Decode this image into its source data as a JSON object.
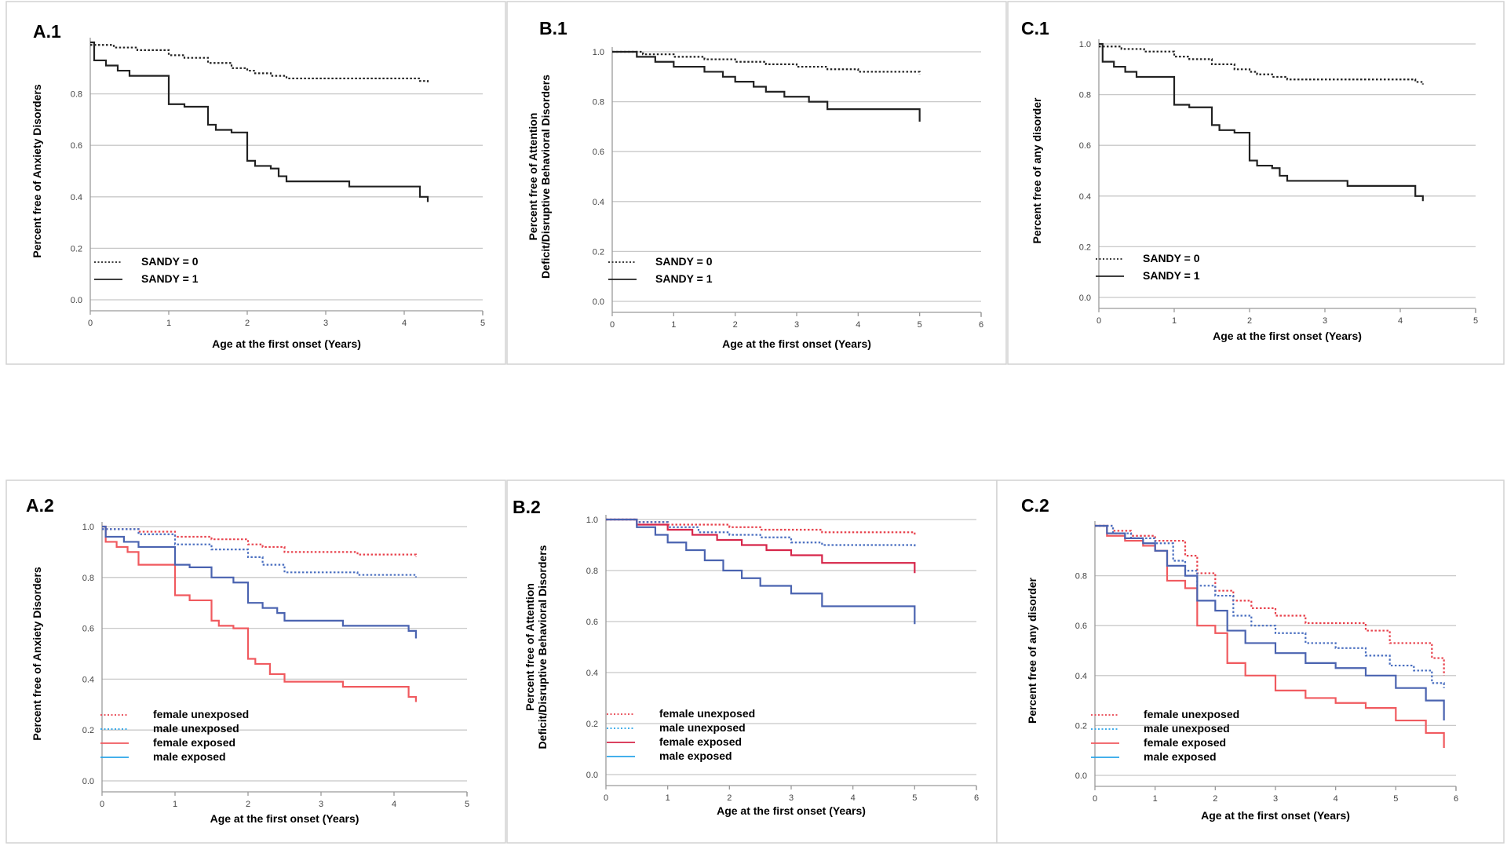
{
  "chart_data": [
    {
      "id": "A.1",
      "type": "line",
      "title": "A.1",
      "xlabel": "Age at the first onset (Years)",
      "ylabel": [
        "Percent free of Anxiety Disorders"
      ],
      "xlim": [
        0,
        5
      ],
      "ylim": [
        0,
        1
      ],
      "xticks": [
        "0",
        "1",
        "2",
        "3",
        "4",
        "5"
      ],
      "yticks": [
        "0.0",
        "0.2",
        "0.4",
        "0.6",
        "0.8"
      ],
      "series": [
        {
          "name": "SANDY = 0",
          "color": "#222222",
          "dash": "dotted",
          "x": [
            0,
            0.3,
            0.6,
            1.0,
            1.2,
            1.5,
            1.8,
            2.0,
            2.1,
            2.3,
            2.5,
            3.0,
            3.5,
            4.0,
            4.2,
            4.3
          ],
          "y": [
            0.99,
            0.98,
            0.97,
            0.95,
            0.94,
            0.92,
            0.9,
            0.89,
            0.88,
            0.87,
            0.86,
            0.86,
            0.86,
            0.86,
            0.85,
            0.84
          ]
        },
        {
          "name": "SANDY = 1",
          "color": "#222222",
          "dash": "solid",
          "x": [
            0,
            0.05,
            0.2,
            0.35,
            0.5,
            1.0,
            1.2,
            1.5,
            1.6,
            1.8,
            2.0,
            2.1,
            2.3,
            2.4,
            2.5,
            3.3,
            4.0,
            4.2,
            4.3
          ],
          "y": [
            1.0,
            0.93,
            0.91,
            0.89,
            0.87,
            0.76,
            0.75,
            0.68,
            0.66,
            0.65,
            0.54,
            0.52,
            0.51,
            0.48,
            0.46,
            0.44,
            0.44,
            0.4,
            0.38
          ]
        }
      ]
    },
    {
      "id": "B.1",
      "type": "line",
      "title": "B.1",
      "xlabel": "Age at the first onset (Years)",
      "ylabel": [
        "Percent free of Attention",
        "Deficit/Disruptive Behavioral Disorders"
      ],
      "xlim": [
        0,
        6
      ],
      "ylim": [
        0,
        1
      ],
      "xticks": [
        "0",
        "1",
        "2",
        "3",
        "4",
        "5",
        "6"
      ],
      "yticks": [
        "0.0",
        "0.2",
        "0.4",
        "0.6",
        "0.8",
        "1.0"
      ],
      "series": [
        {
          "name": "SANDY = 0",
          "color": "#222222",
          "dash": "dotted",
          "x": [
            0,
            0.5,
            1.0,
            1.5,
            2.0,
            2.5,
            3.0,
            3.5,
            4.0,
            4.5,
            5.0
          ],
          "y": [
            1.0,
            0.99,
            0.98,
            0.97,
            0.96,
            0.95,
            0.94,
            0.93,
            0.92,
            0.92,
            0.91
          ]
        },
        {
          "name": "SANDY = 1",
          "color": "#222222",
          "dash": "solid",
          "x": [
            0,
            0.4,
            0.7,
            1.0,
            1.5,
            1.8,
            2.0,
            2.3,
            2.5,
            2.8,
            3.2,
            3.5,
            4.0,
            5.0
          ],
          "y": [
            1.0,
            0.98,
            0.96,
            0.94,
            0.92,
            0.9,
            0.88,
            0.86,
            0.84,
            0.82,
            0.8,
            0.77,
            0.77,
            0.72
          ]
        }
      ]
    },
    {
      "id": "C.1",
      "type": "line",
      "title": "C.1",
      "xlabel": "Age at the first onset (Years)",
      "ylabel": [
        "Percent free of any disorder"
      ],
      "xlim": [
        0,
        5
      ],
      "ylim": [
        0,
        1
      ],
      "xticks": [
        "0",
        "1",
        "2",
        "3",
        "4",
        "5"
      ],
      "yticks": [
        "0.0",
        "0.2",
        "0.4",
        "0.6",
        "0.8",
        "1.0"
      ],
      "series": [
        {
          "name": "SANDY = 0",
          "color": "#222222",
          "dash": "dotted",
          "x": [
            0,
            0.3,
            0.6,
            1.0,
            1.2,
            1.5,
            1.8,
            2.0,
            2.1,
            2.3,
            2.5,
            3.0,
            3.5,
            4.0,
            4.2,
            4.3
          ],
          "y": [
            0.99,
            0.98,
            0.97,
            0.95,
            0.94,
            0.92,
            0.9,
            0.89,
            0.88,
            0.87,
            0.86,
            0.86,
            0.86,
            0.86,
            0.85,
            0.84
          ]
        },
        {
          "name": "SANDY = 1",
          "color": "#222222",
          "dash": "solid",
          "x": [
            0,
            0.05,
            0.2,
            0.35,
            0.5,
            1.0,
            1.2,
            1.5,
            1.6,
            1.8,
            2.0,
            2.1,
            2.3,
            2.4,
            2.5,
            3.3,
            4.0,
            4.2,
            4.3
          ],
          "y": [
            1.0,
            0.93,
            0.91,
            0.89,
            0.87,
            0.76,
            0.75,
            0.68,
            0.66,
            0.65,
            0.54,
            0.52,
            0.51,
            0.48,
            0.46,
            0.44,
            0.44,
            0.4,
            0.38
          ]
        }
      ]
    },
    {
      "id": "A.2",
      "type": "line",
      "title": "A.2",
      "xlabel": "Age at the first onset (Years)",
      "ylabel": [
        "Percent free of Anxiety Disorders"
      ],
      "xlim": [
        0,
        5
      ],
      "ylim": [
        0,
        1
      ],
      "xticks": [
        "0",
        "1",
        "2",
        "3",
        "4",
        "5"
      ],
      "yticks": [
        "0.0",
        "0.2",
        "0.4",
        "0.6",
        "0.8",
        "1.0"
      ],
      "series": [
        {
          "name": "female unexposed",
          "color": "#e8434e",
          "dash": "dotted",
          "x": [
            0,
            0.5,
            1.0,
            1.5,
            2.0,
            2.2,
            2.5,
            3.0,
            3.5,
            4.0,
            4.3
          ],
          "y": [
            0.99,
            0.98,
            0.96,
            0.95,
            0.93,
            0.92,
            0.9,
            0.9,
            0.89,
            0.89,
            0.88
          ]
        },
        {
          "name": "male unexposed",
          "color": "#4a6fc0",
          "dash": "dotted",
          "x": [
            0,
            0.5,
            1.0,
            1.5,
            2.0,
            2.2,
            2.5,
            3.0,
            3.5,
            4.0,
            4.3
          ],
          "y": [
            0.99,
            0.97,
            0.93,
            0.91,
            0.88,
            0.85,
            0.82,
            0.82,
            0.81,
            0.81,
            0.8
          ]
        },
        {
          "name": "female exposed",
          "color": "#f05a5f",
          "dash": "solid",
          "x": [
            0,
            0.05,
            0.2,
            0.35,
            0.5,
            1.0,
            1.2,
            1.5,
            1.6,
            1.8,
            2.0,
            2.1,
            2.3,
            2.5,
            3.3,
            4.0,
            4.2,
            4.3
          ],
          "y": [
            1.0,
            0.94,
            0.92,
            0.9,
            0.85,
            0.73,
            0.71,
            0.63,
            0.61,
            0.6,
            0.48,
            0.46,
            0.42,
            0.39,
            0.37,
            0.37,
            0.33,
            0.31
          ]
        },
        {
          "name": "male exposed",
          "color": "#4a63b0",
          "dash": "solid",
          "x": [
            0,
            0.05,
            0.3,
            0.5,
            1.0,
            1.2,
            1.5,
            1.8,
            2.0,
            2.2,
            2.4,
            2.5,
            3.3,
            4.0,
            4.2,
            4.3
          ],
          "y": [
            1.0,
            0.96,
            0.94,
            0.92,
            0.85,
            0.84,
            0.8,
            0.78,
            0.7,
            0.68,
            0.66,
            0.63,
            0.61,
            0.61,
            0.59,
            0.56
          ]
        }
      ]
    },
    {
      "id": "B.2",
      "type": "line",
      "title": "B.2",
      "xlabel": "Age at the first onset (Years)",
      "ylabel": [
        "Percent free of Attention",
        "Deficit/Disruptive Behavioral Disorders"
      ],
      "xlim": [
        0,
        6
      ],
      "ylim": [
        0,
        1
      ],
      "xticks": [
        "0",
        "1",
        "2",
        "3",
        "4",
        "5",
        "6"
      ],
      "yticks": [
        "0.0",
        "0.2",
        "0.4",
        "0.6",
        "0.8",
        "1.0"
      ],
      "series": [
        {
          "name": "female unexposed",
          "color": "#e8434e",
          "dash": "dotted",
          "x": [
            0,
            0.5,
            1.0,
            1.5,
            2.0,
            2.5,
            3.0,
            3.5,
            4.0,
            4.5,
            5.0
          ],
          "y": [
            1.0,
            0.99,
            0.98,
            0.98,
            0.97,
            0.96,
            0.96,
            0.95,
            0.95,
            0.95,
            0.94
          ]
        },
        {
          "name": "male unexposed",
          "color": "#4a6fc0",
          "dash": "dotted",
          "x": [
            0,
            0.5,
            1.0,
            1.5,
            2.0,
            2.5,
            3.0,
            3.5,
            4.0,
            4.5,
            5.0
          ],
          "y": [
            1.0,
            0.99,
            0.97,
            0.95,
            0.94,
            0.93,
            0.91,
            0.9,
            0.9,
            0.9,
            0.89
          ]
        },
        {
          "name": "female exposed",
          "color": "#d6264a",
          "dash": "solid",
          "x": [
            0,
            0.5,
            1.0,
            1.4,
            1.8,
            2.2,
            2.6,
            3.0,
            3.5,
            4.0,
            5.0
          ],
          "y": [
            1.0,
            0.98,
            0.96,
            0.94,
            0.92,
            0.9,
            0.88,
            0.86,
            0.83,
            0.83,
            0.79
          ]
        },
        {
          "name": "male exposed",
          "color": "#4a63b0",
          "dash": "solid",
          "x": [
            0,
            0.5,
            0.8,
            1.0,
            1.3,
            1.6,
            1.9,
            2.2,
            2.5,
            3.0,
            3.5,
            4.0,
            5.0
          ],
          "y": [
            1.0,
            0.97,
            0.94,
            0.91,
            0.88,
            0.84,
            0.8,
            0.77,
            0.74,
            0.71,
            0.66,
            0.66,
            0.59
          ]
        }
      ]
    },
    {
      "id": "C.2",
      "type": "line",
      "title": "C.2",
      "xlabel": "Age at the first onset (Years)",
      "ylabel": [
        "Percent free of any disorder"
      ],
      "xlim": [
        0,
        6
      ],
      "ylim": [
        0,
        1
      ],
      "xticks": [
        "0",
        "1",
        "2",
        "3",
        "4",
        "5",
        "6"
      ],
      "yticks": [
        "0.0",
        "0.2",
        "0.4",
        "0.6",
        "0.8"
      ],
      "series": [
        {
          "name": "female unexposed",
          "color": "#e8434e",
          "dash": "dotted",
          "x": [
            0,
            0.3,
            0.6,
            1.0,
            1.5,
            1.7,
            2.0,
            2.3,
            2.6,
            3.0,
            3.5,
            4.0,
            4.5,
            4.9,
            5.3,
            5.6,
            5.8
          ],
          "y": [
            1.0,
            0.98,
            0.96,
            0.94,
            0.88,
            0.81,
            0.74,
            0.7,
            0.67,
            0.64,
            0.61,
            0.61,
            0.58,
            0.53,
            0.53,
            0.47,
            0.4
          ]
        },
        {
          "name": "male unexposed",
          "color": "#4a6fc0",
          "dash": "dotted",
          "x": [
            0,
            0.3,
            0.6,
            1.0,
            1.3,
            1.5,
            1.7,
            2.0,
            2.3,
            2.6,
            3.0,
            3.5,
            4.0,
            4.5,
            4.9,
            5.3,
            5.6,
            5.8
          ],
          "y": [
            1.0,
            0.97,
            0.95,
            0.93,
            0.86,
            0.82,
            0.76,
            0.72,
            0.64,
            0.6,
            0.57,
            0.53,
            0.51,
            0.48,
            0.44,
            0.42,
            0.37,
            0.35
          ]
        },
        {
          "name": "female exposed",
          "color": "#f05a5f",
          "dash": "solid",
          "x": [
            0,
            0.2,
            0.5,
            0.8,
            1.0,
            1.2,
            1.5,
            1.7,
            2.0,
            2.2,
            2.5,
            3.0,
            3.5,
            4.0,
            4.5,
            5.0,
            5.5,
            5.8
          ],
          "y": [
            1.0,
            0.96,
            0.94,
            0.92,
            0.9,
            0.78,
            0.75,
            0.6,
            0.57,
            0.45,
            0.4,
            0.34,
            0.31,
            0.29,
            0.27,
            0.22,
            0.17,
            0.11
          ]
        },
        {
          "name": "male exposed",
          "color": "#4a63b0",
          "dash": "solid",
          "x": [
            0,
            0.2,
            0.5,
            0.8,
            1.0,
            1.2,
            1.5,
            1.7,
            2.0,
            2.2,
            2.5,
            3.0,
            3.5,
            4.0,
            4.5,
            5.0,
            5.5,
            5.8
          ],
          "y": [
            1.0,
            0.97,
            0.95,
            0.93,
            0.9,
            0.84,
            0.8,
            0.7,
            0.66,
            0.58,
            0.53,
            0.49,
            0.45,
            0.43,
            0.4,
            0.35,
            0.3,
            0.22
          ]
        }
      ]
    }
  ]
}
